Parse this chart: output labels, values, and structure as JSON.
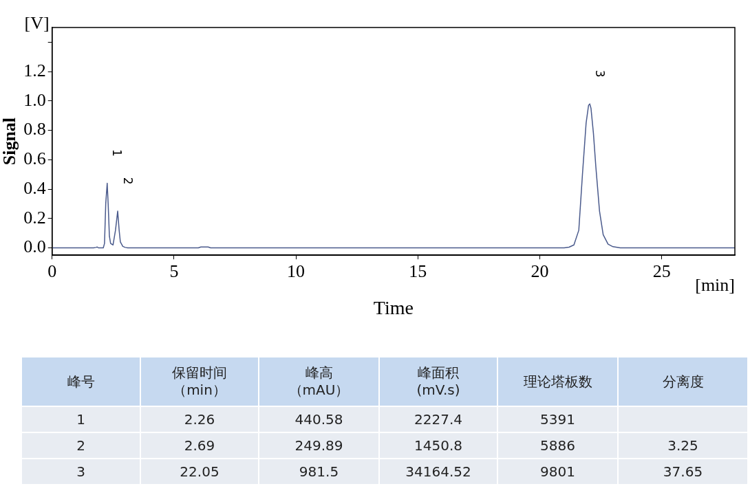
{
  "chart_data": {
    "type": "line",
    "xlabel": "Time",
    "ylabel": "Signal",
    "x": [
      0,
      1.7,
      1.8,
      1.85,
      1.9,
      2.1,
      2.15,
      2.2,
      2.26,
      2.3,
      2.35,
      2.4,
      2.5,
      2.6,
      2.69,
      2.75,
      2.8,
      2.9,
      3.0,
      3.1,
      6.0,
      6.1,
      6.4,
      6.5,
      21.0,
      21.2,
      21.4,
      21.6,
      21.75,
      21.9,
      22.0,
      22.05,
      22.1,
      22.2,
      22.3,
      22.45,
      22.6,
      22.8,
      23.0,
      23.3,
      28
    ],
    "series": [
      {
        "color": "#4a5a8c",
        "values": [
          0,
          0,
          0.003,
          0.006,
          0,
          0,
          0.03,
          0.3,
          0.44,
          0.3,
          0.08,
          0.03,
          0.02,
          0.12,
          0.25,
          0.12,
          0.04,
          0.01,
          0.003,
          0,
          0,
          0.006,
          0.006,
          0,
          0,
          0.005,
          0.02,
          0.12,
          0.5,
          0.85,
          0.97,
          0.98,
          0.95,
          0.78,
          0.55,
          0.25,
          0.09,
          0.025,
          0.008,
          0,
          0
        ]
      }
    ],
    "xlim": [
      0,
      28
    ],
    "xticks": [
      0,
      5,
      10,
      15,
      20,
      25
    ],
    "ylim": [
      -0.05,
      1.5
    ],
    "yticks": [
      {
        "value": 0,
        "label": "0.0"
      },
      0.2,
      0.4,
      0.6,
      0.8,
      {
        "value": 1,
        "label": "1.0"
      },
      1.2,
      {
        "value": 1.4,
        "label": null
      }
    ],
    "grid": false,
    "legend": false,
    "marker": "none",
    "line_style": "solid",
    "annotations": [
      "[V]",
      "[min]",
      {
        "text": "1",
        "x": 2.26,
        "y": 0.44
      },
      {
        "text": "2",
        "x": 2.69,
        "y": 0.25
      },
      {
        "text": "3",
        "x": 22.05,
        "y": 0.98
      },
      "峰号",
      "保留时间（min）",
      "峰高（mAU）",
      "峰面积(mV.s)",
      "理论塔板数",
      "分离度",
      "1",
      "2.26",
      "440.58",
      "2227.4",
      "5391",
      "2",
      "2.69",
      "249.89",
      "1450.8",
      "5886",
      "3.25",
      "3",
      "22.05",
      "981.5",
      "34164.52",
      "9801",
      "37.65"
    ]
  }
}
